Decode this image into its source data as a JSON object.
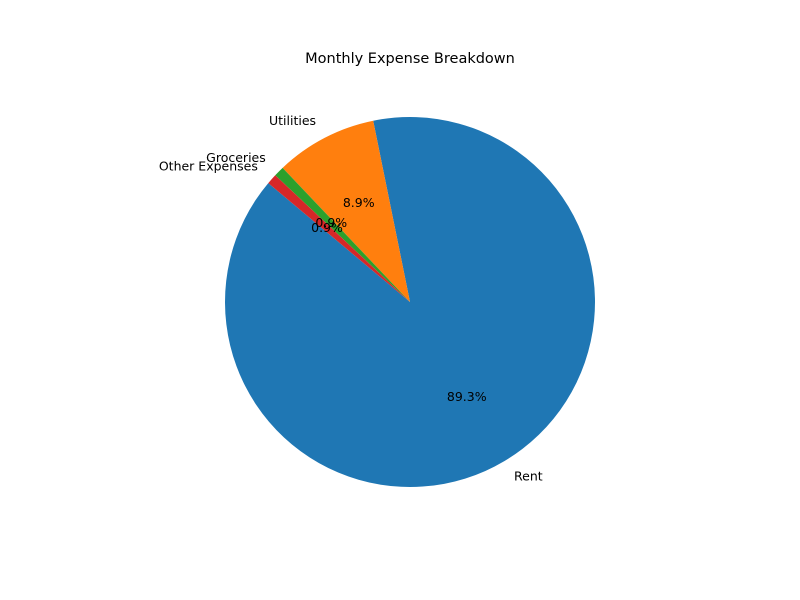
{
  "chart_data": {
    "type": "pie",
    "title": "Monthly Expense Breakdown",
    "start_angle_deg": 140,
    "direction": "counterclockwise",
    "slices": [
      {
        "label": "Rent",
        "value": 89.3,
        "pct_label": "89.3%",
        "color": "#1f77b4"
      },
      {
        "label": "Utilities",
        "value": 8.9,
        "pct_label": "8.9%",
        "color": "#ff7f0e"
      },
      {
        "label": "Groceries",
        "value": 0.9,
        "pct_label": "0.9%",
        "color": "#2ca02c"
      },
      {
        "label": "Other Expenses",
        "value": 0.9,
        "pct_label": "0.9%",
        "color": "#d62728"
      }
    ]
  }
}
